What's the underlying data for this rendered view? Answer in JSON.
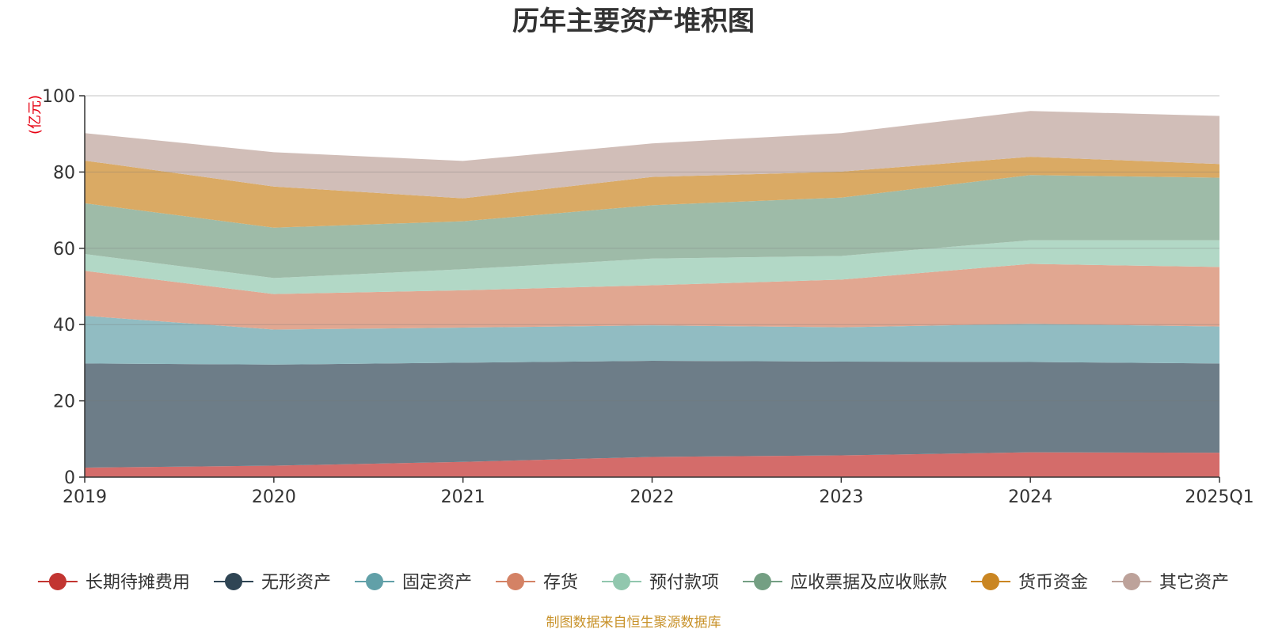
{
  "chart_data": {
    "type": "area",
    "stacked": true,
    "title": "历年主要资产堆积图",
    "unit_label": "(亿元)",
    "categories": [
      "2019",
      "2020",
      "2021",
      "2022",
      "2023",
      "2024",
      "2025Q1"
    ],
    "ylim": [
      0,
      100
    ],
    "yticks": [
      0,
      20,
      40,
      60,
      80,
      100
    ],
    "grid": true,
    "legend_position": "bottom",
    "series": [
      {
        "name": "长期待摊费用",
        "color": "#c23531",
        "area_color": "#d46c6a",
        "values": [
          2.5,
          3.0,
          4.0,
          5.3,
          5.7,
          6.5,
          6.4
        ]
      },
      {
        "name": "无形资产",
        "color": "#2f4554",
        "area_color": "#6d7d88",
        "values": [
          27.3,
          26.5,
          26.0,
          25.2,
          24.6,
          23.7,
          23.4
        ]
      },
      {
        "name": "固定资产",
        "color": "#61a0a8",
        "area_color": "#91bcc2",
        "values": [
          12.5,
          9.2,
          9.2,
          9.3,
          9.0,
          10.0,
          9.7
        ]
      },
      {
        "name": "存货",
        "color": "#d48265",
        "area_color": "#e1a791",
        "values": [
          11.8,
          9.3,
          9.8,
          10.5,
          12.5,
          15.7,
          15.6
        ]
      },
      {
        "name": "预付款项",
        "color": "#91c7ae",
        "area_color": "#b2d8c6",
        "values": [
          4.4,
          4.2,
          5.5,
          7.0,
          6.2,
          6.2,
          7.0
        ]
      },
      {
        "name": "应收票据及应收账款",
        "color": "#749f83",
        "area_color": "#9ebba8",
        "values": [
          13.3,
          13.2,
          12.6,
          14.0,
          15.3,
          17.1,
          16.4
        ]
      },
      {
        "name": "货币资金",
        "color": "#ca8622",
        "area_color": "#daaa64",
        "values": [
          11.2,
          10.8,
          6.0,
          7.4,
          6.8,
          4.8,
          3.6
        ]
      },
      {
        "name": "其它资产",
        "color": "#bda29a",
        "area_color": "#d1beb8",
        "values": [
          7.2,
          9.0,
          9.8,
          8.8,
          10.1,
          12.0,
          12.6
        ]
      }
    ]
  },
  "source_note": "制图数据来自恒生聚源数据库"
}
